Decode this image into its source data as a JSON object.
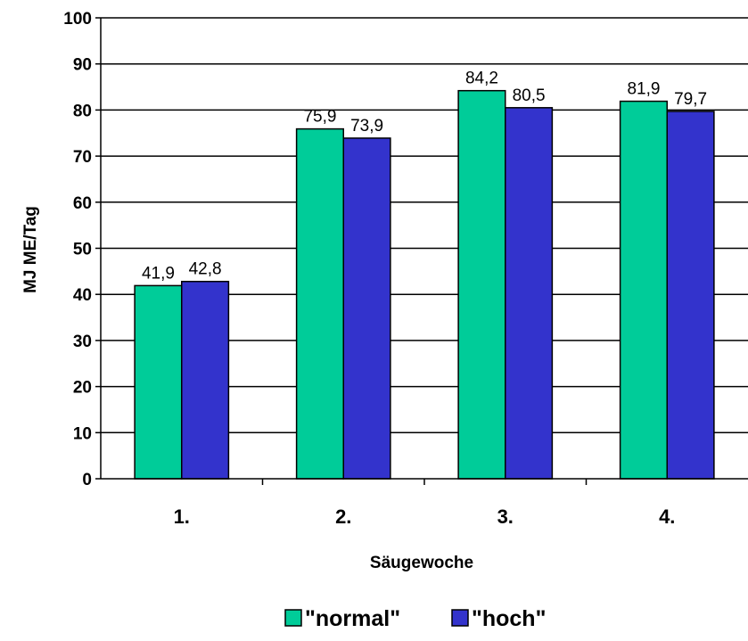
{
  "chart_data": {
    "type": "bar",
    "categories": [
      "1.",
      "2.",
      "3.",
      "4."
    ],
    "series": [
      {
        "name": "\"normal\"",
        "values": [
          41.9,
          75.9,
          84.2,
          81.9
        ],
        "labels": [
          "41,9",
          "75,9",
          "84,2",
          "81,9"
        ],
        "color": "#00cc99"
      },
      {
        "name": "\"hoch\"",
        "values": [
          42.8,
          73.9,
          80.5,
          79.7
        ],
        "labels": [
          "42,8",
          "73,9",
          "80,5",
          "79,7"
        ],
        "color": "#3333cc"
      }
    ],
    "title": "",
    "xlabel": "Säugewoche",
    "ylabel": "MJ ME/Tag",
    "ylim": [
      0,
      100
    ],
    "yticks": [
      "0",
      "10",
      "20",
      "30",
      "40",
      "50",
      "60",
      "70",
      "80",
      "90",
      "100"
    ],
    "grid": true,
    "legend_position": "bottom"
  }
}
